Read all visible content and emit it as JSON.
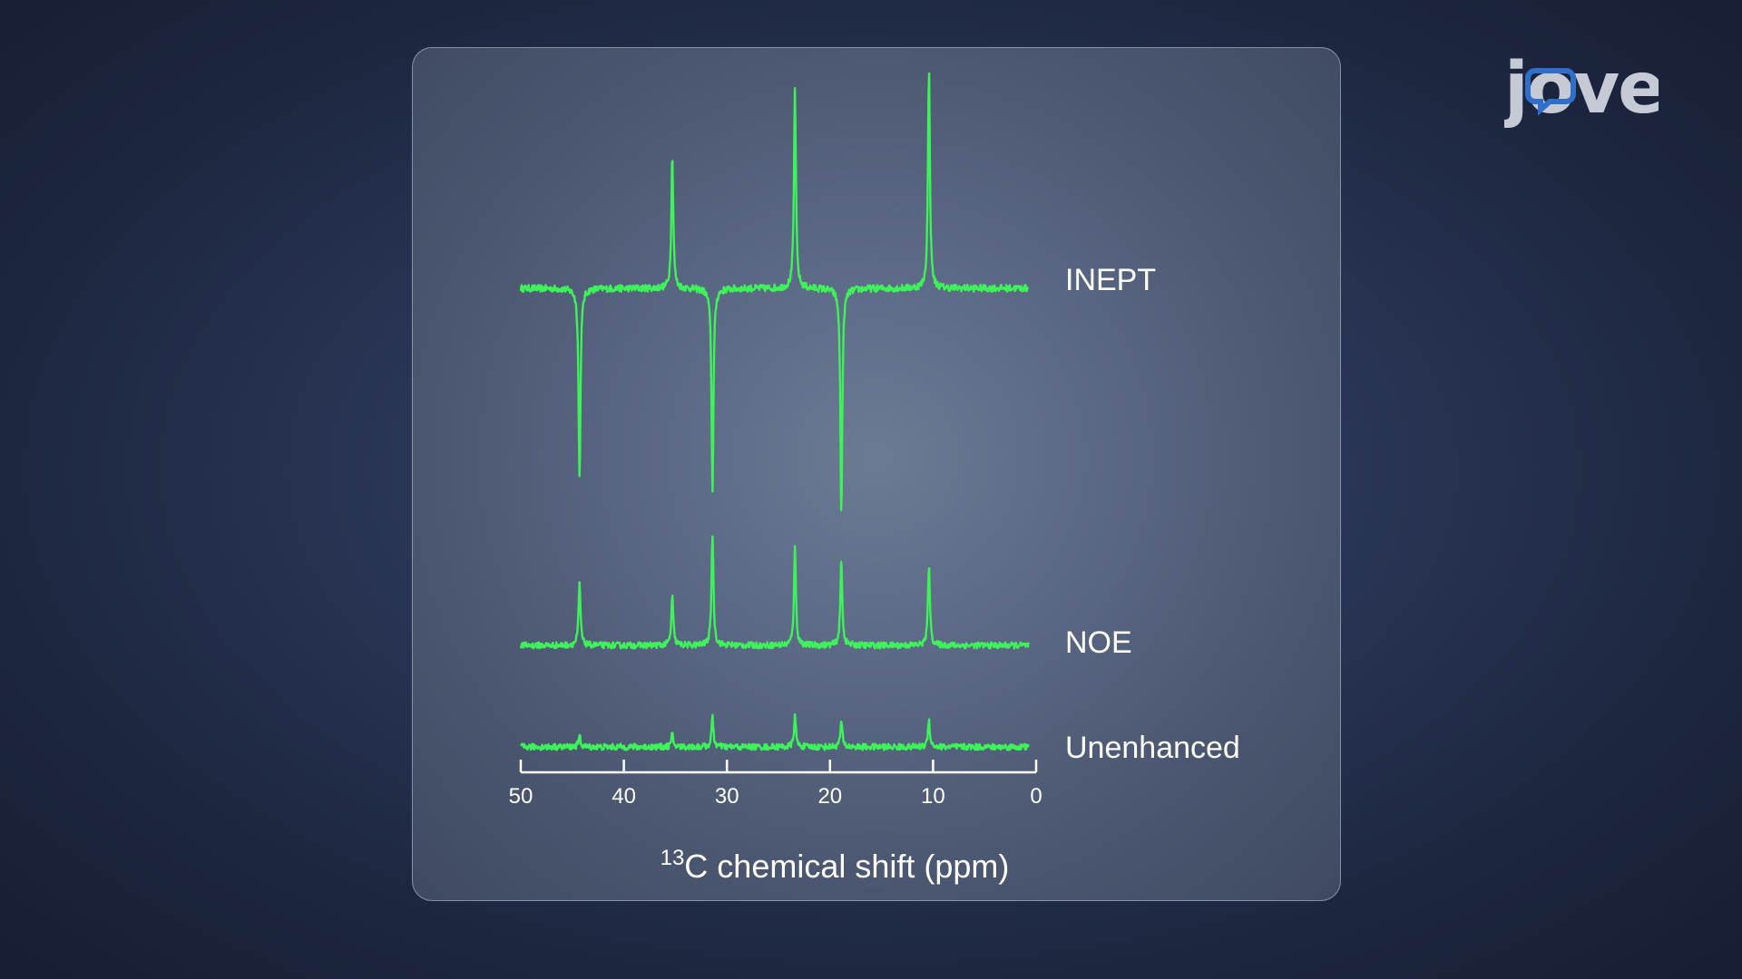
{
  "logo": {
    "text": "jove",
    "accent_color": "#2f6fc9"
  },
  "chart_data": {
    "type": "line",
    "xlabel_sup": "13",
    "xlabel_main": "C chemical shift (ppm)",
    "xlim": [
      50,
      0
    ],
    "x_ticks": [
      50,
      40,
      30,
      20,
      10,
      0
    ],
    "x_tick_labels": [
      "50",
      "40",
      "30",
      "20",
      "10",
      "0"
    ],
    "line_color": "#3ef25a",
    "series": [
      {
        "name": "INEPT",
        "peaks": [
          {
            "x": 44.3,
            "value": -1.0
          },
          {
            "x": 35.3,
            "value": 0.71
          },
          {
            "x": 31.4,
            "value": -1.06
          },
          {
            "x": 23.4,
            "value": 1.05
          },
          {
            "x": 18.9,
            "value": -1.2
          },
          {
            "x": 10.4,
            "value": 1.15
          }
        ]
      },
      {
        "name": "NOE",
        "peaks": [
          {
            "x": 44.3,
            "value": 0.4
          },
          {
            "x": 35.3,
            "value": 0.32
          },
          {
            "x": 31.4,
            "value": 0.72
          },
          {
            "x": 23.4,
            "value": 0.63
          },
          {
            "x": 18.9,
            "value": 0.55
          },
          {
            "x": 10.4,
            "value": 0.53
          }
        ]
      },
      {
        "name": "Unenhanced",
        "peaks": [
          {
            "x": 44.3,
            "value": 0.07
          },
          {
            "x": 35.3,
            "value": 0.08
          },
          {
            "x": 31.4,
            "value": 0.19
          },
          {
            "x": 23.4,
            "value": 0.2
          },
          {
            "x": 18.9,
            "value": 0.17
          },
          {
            "x": 10.4,
            "value": 0.18
          }
        ]
      }
    ]
  }
}
